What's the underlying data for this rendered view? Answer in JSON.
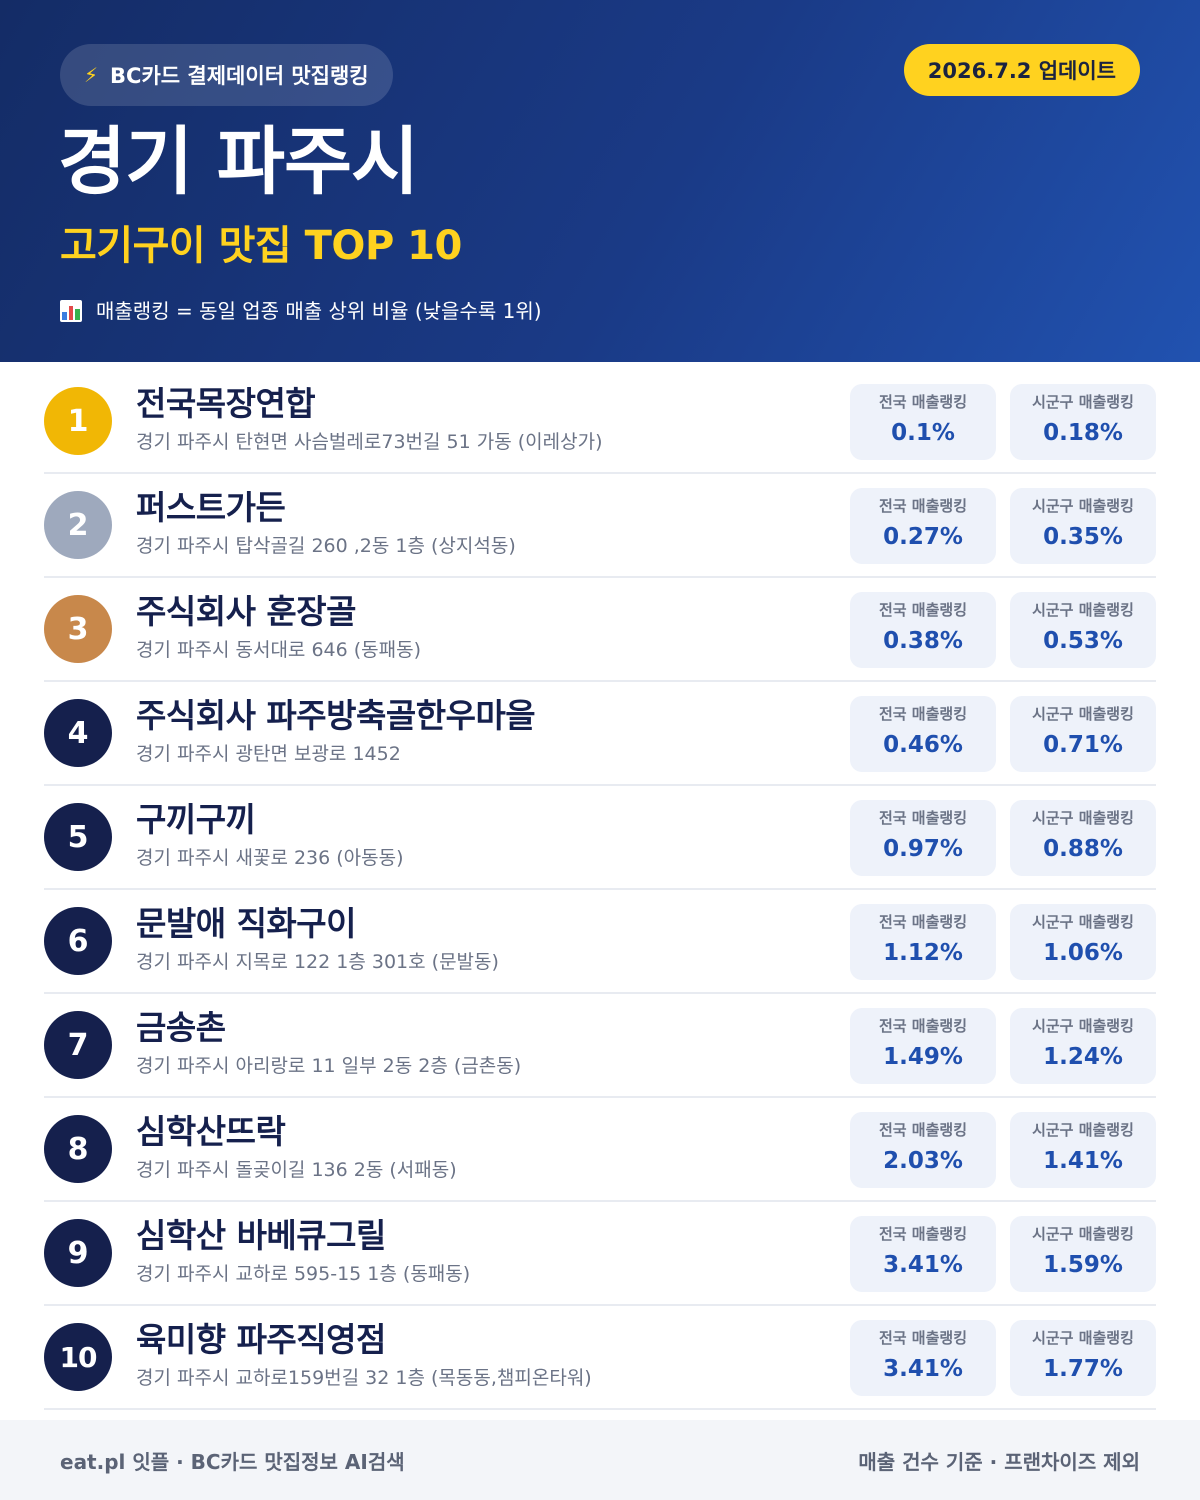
{
  "header": {
    "source": "BC카드 결제데이터 맛집랭킹",
    "update": "2026.7.2 업데이트",
    "title": "경기 파주시",
    "subtitle": "고기구이 맛집 TOP 10",
    "note": "매출랭킹 = 동일 업종 매출 상위 비율 (낮을수록 1위)"
  },
  "labels": {
    "national": "전국 매출랭킹",
    "local": "시군구 매출랭킹"
  },
  "restaurants": [
    {
      "rank": "1",
      "name": "전국목장연합",
      "address": "경기 파주시 탄현면 사슴벌레로73번길 51 가동 (이레상가)",
      "national": "0.1%",
      "local": "0.18%"
    },
    {
      "rank": "2",
      "name": "퍼스트가든",
      "address": "경기 파주시 탑삭골길 260 ,2동 1층 (상지석동)",
      "national": "0.27%",
      "local": "0.35%"
    },
    {
      "rank": "3",
      "name": "주식회사 훈장골",
      "address": "경기 파주시 동서대로 646 (동패동)",
      "national": "0.38%",
      "local": "0.53%"
    },
    {
      "rank": "4",
      "name": "주식회사 파주방축골한우마을",
      "address": "경기 파주시 광탄면 보광로 1452",
      "national": "0.46%",
      "local": "0.71%"
    },
    {
      "rank": "5",
      "name": "구끼구끼",
      "address": "경기 파주시 새꽃로 236 (아동동)",
      "national": "0.97%",
      "local": "0.88%"
    },
    {
      "rank": "6",
      "name": "문발애 직화구이",
      "address": "경기 파주시 지목로 122 1층 301호 (문발동)",
      "national": "1.12%",
      "local": "1.06%"
    },
    {
      "rank": "7",
      "name": "금송촌",
      "address": "경기 파주시 아리랑로 11 일부 2동 2층 (금촌동)",
      "national": "1.49%",
      "local": "1.24%"
    },
    {
      "rank": "8",
      "name": "심학산뜨락",
      "address": "경기 파주시 돌곶이길 136 2동 (서패동)",
      "national": "2.03%",
      "local": "1.41%"
    },
    {
      "rank": "9",
      "name": "심학산 바베큐그릴",
      "address": "경기 파주시 교하로 595-15 1층 (동패동)",
      "national": "3.41%",
      "local": "1.59%"
    },
    {
      "rank": "10",
      "name": "육미향 파주직영점",
      "address": "경기 파주시 교하로159번길 32 1층 (목동동,챔피온타워)",
      "national": "3.41%",
      "local": "1.77%"
    }
  ],
  "footer": {
    "left": "eat.pl 잇플 · BC카드 맛집정보 AI검색",
    "right": "매출 건수 기준 · 프랜차이즈 제외"
  },
  "colors": {
    "header_start": "#142c66",
    "header_end": "#2152b0",
    "accent_yellow": "#ffd21f",
    "gold": "#f1b705",
    "silver": "#9ea9bd",
    "bronze": "#c8884b",
    "navy": "#15204d",
    "value_blue": "#1f4fae"
  },
  "icons": {
    "source": "lightning-bolt-icon",
    "note": "bar-chart-icon"
  }
}
